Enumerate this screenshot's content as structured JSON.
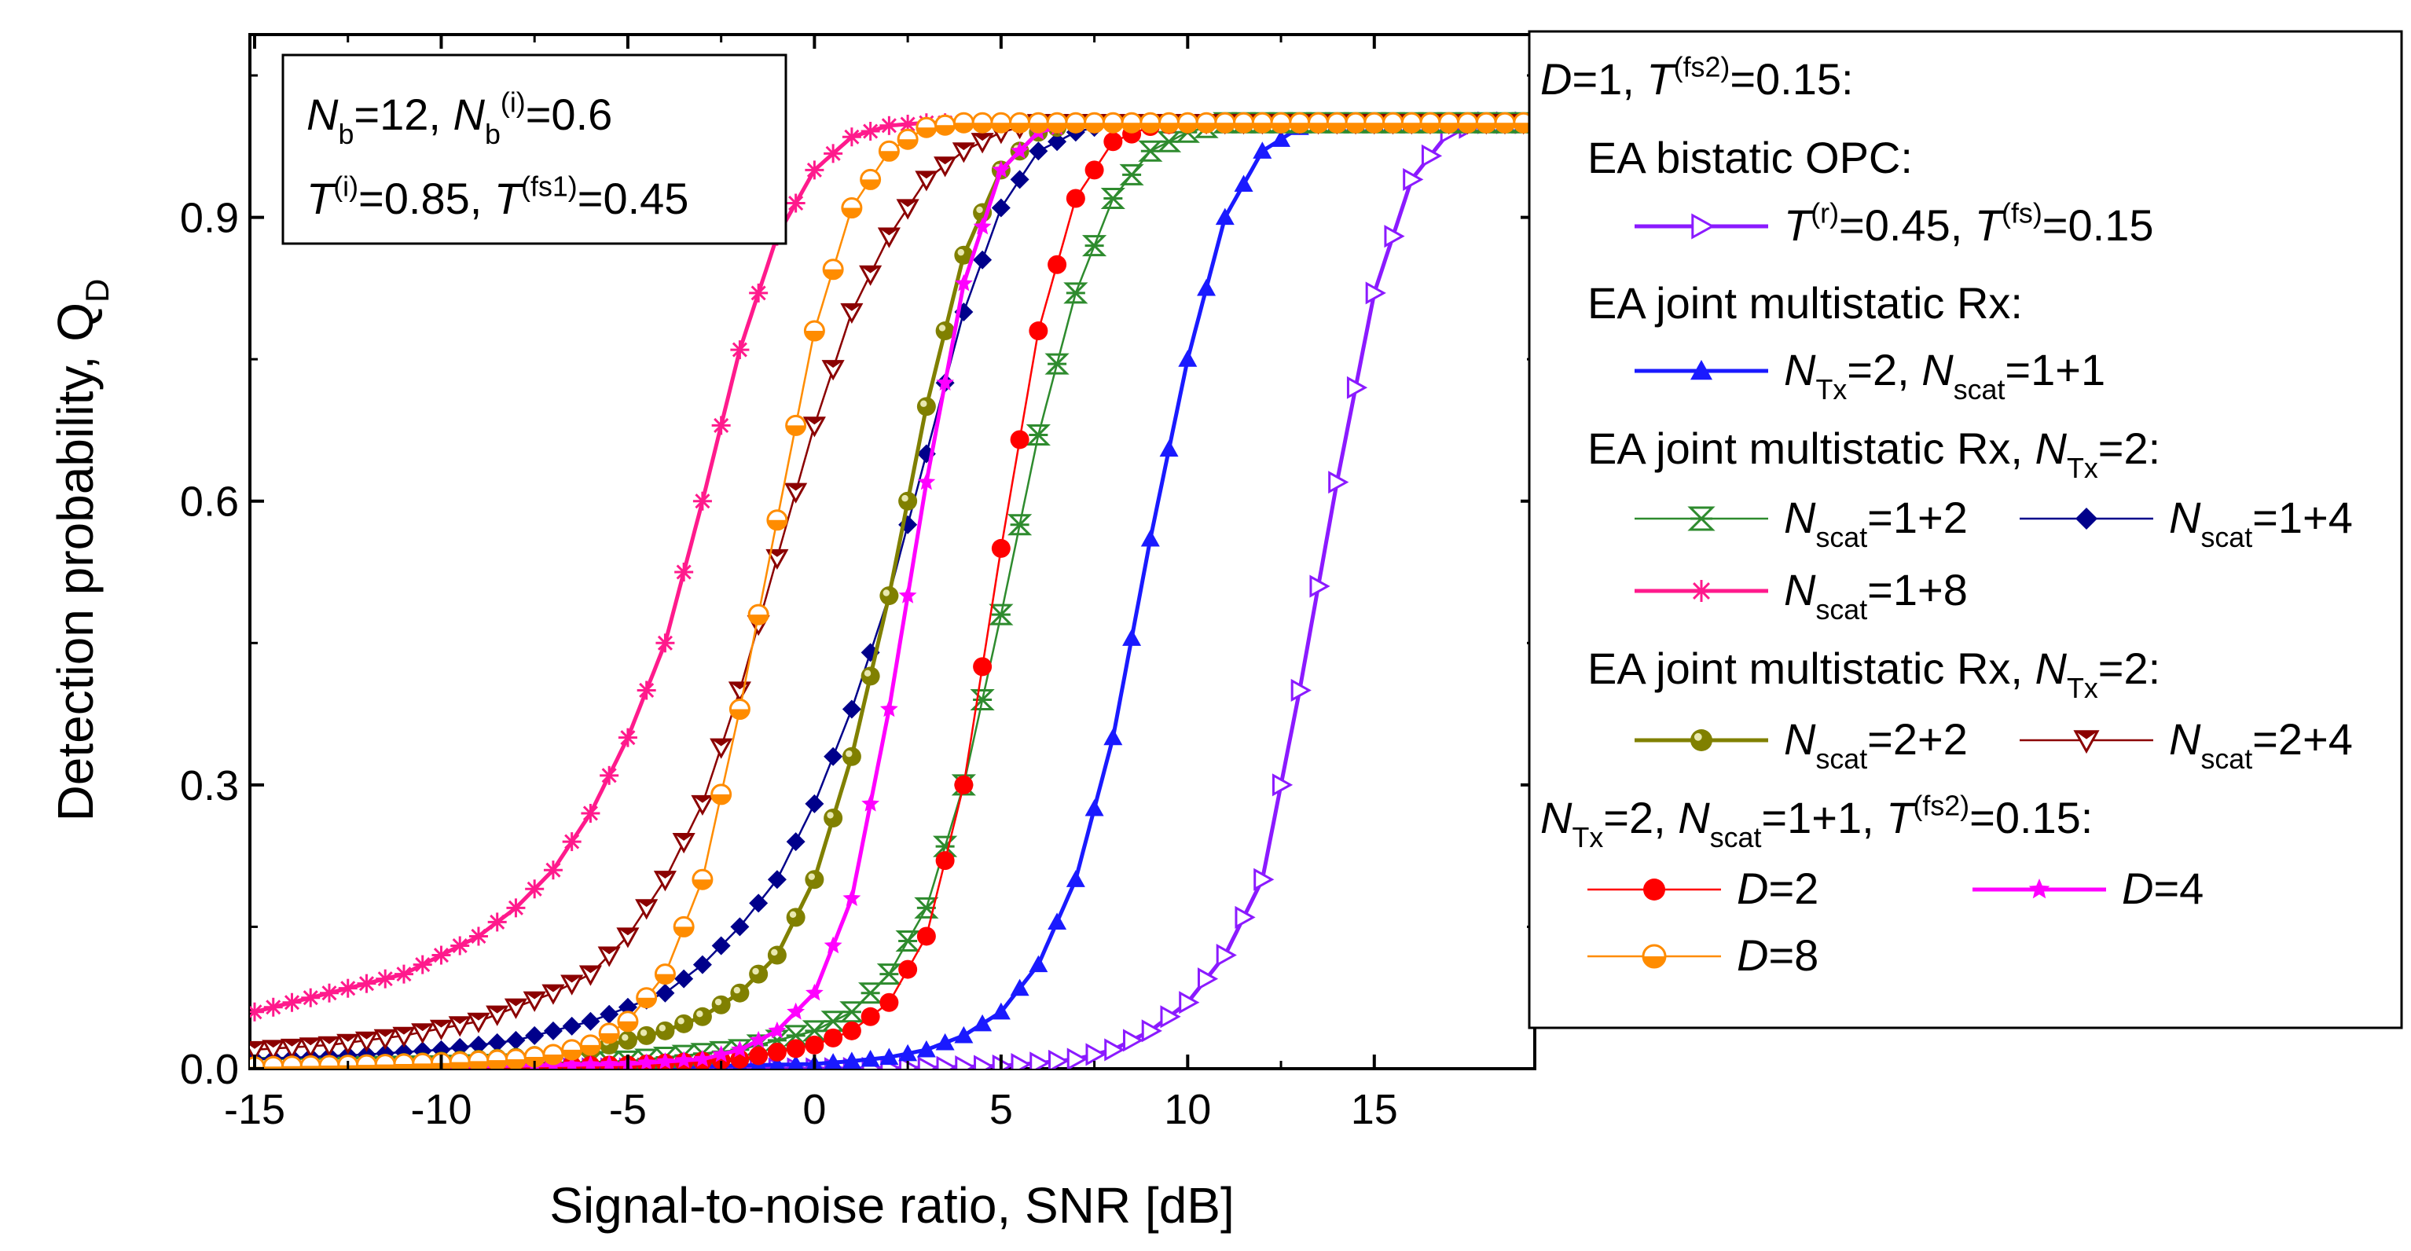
{
  "chart_data": {
    "type": "line",
    "title": "",
    "xlabel": "Signal-to-noise ratio, SNR [dB]",
    "ylabel": {
      "main": "Detection probability, Q",
      "sub": "D"
    },
    "xlim": [
      -15,
      19.3
    ],
    "ylim": [
      0,
      1.05
    ],
    "xticks": [
      -15,
      -10,
      -5,
      0,
      5,
      10,
      15
    ],
    "yticks": [
      0,
      0.3,
      0.6,
      0.9
    ],
    "ytick_labels": [
      "0.0",
      "0.3",
      "0.6",
      "0.9"
    ],
    "grid": false,
    "legend_position": "right, outside plot",
    "params_box": {
      "line1": [
        {
          "t": "N",
          "i": true
        },
        {
          "t": "b",
          "sub": true
        },
        {
          "t": "=12, "
        },
        {
          "t": "N",
          "i": true
        },
        {
          "t": "b",
          "sub": true
        },
        {
          "t": "(i)",
          "sup": true
        },
        {
          "t": "=0.6"
        }
      ],
      "line2": [
        {
          "t": "T",
          "i": true
        },
        {
          "t": "(i)",
          "sup": true
        },
        {
          "t": "=0.85, "
        },
        {
          "t": "T",
          "i": true
        },
        {
          "t": "(fs1)",
          "sup": true
        },
        {
          "t": "=0.45"
        }
      ]
    },
    "legend_headers": {
      "h1": [
        {
          "t": "D",
          "i": true
        },
        {
          "t": "=1, "
        },
        {
          "t": "T",
          "i": true
        },
        {
          "t": "(fs2)",
          "sup": true
        },
        {
          "t": "=0.15:"
        }
      ],
      "h2": [
        {
          "t": "EA bistatic OPC:"
        }
      ],
      "h3": [
        {
          "t": "EA joint multistatic Rx:"
        }
      ],
      "h4": [
        {
          "t": "EA joint multistatic Rx, "
        },
        {
          "t": "N",
          "i": true
        },
        {
          "t": "Tx",
          "sub": true
        },
        {
          "t": "=2:"
        }
      ],
      "h5": [
        {
          "t": "EA joint multistatic Rx, "
        },
        {
          "t": "N",
          "i": true
        },
        {
          "t": "Tx",
          "sub": true
        },
        {
          "t": "=2:"
        }
      ],
      "h6": [
        {
          "t": "N",
          "i": true
        },
        {
          "t": "Tx",
          "sub": true
        },
        {
          "t": "=2, "
        },
        {
          "t": "N",
          "i": true
        },
        {
          "t": "scat",
          "sub": true
        },
        {
          "t": "=1+1, "
        },
        {
          "t": "T",
          "i": true
        },
        {
          "t": "(fs2)",
          "sup": true
        },
        {
          "t": "=0.15:"
        }
      ]
    },
    "series": [
      {
        "id": "bistatic",
        "legend": [
          {
            "t": "T",
            "i": true
          },
          {
            "t": "(r)",
            "sup": true
          },
          {
            "t": "=0.45, "
          },
          {
            "t": "T",
            "i": true
          },
          {
            "t": "(fs)",
            "sup": true
          },
          {
            "t": "=0.15"
          }
        ],
        "color": "#8B1AFF",
        "marker": "triangle-right-open",
        "thick": true,
        "points": [
          [
            -15,
            0
          ],
          [
            -10,
            0
          ],
          [
            -5,
            0
          ],
          [
            0,
            0
          ],
          [
            3,
            0.001
          ],
          [
            5,
            0.003
          ],
          [
            6,
            0.006
          ],
          [
            7,
            0.01
          ],
          [
            8,
            0.02
          ],
          [
            9,
            0.04
          ],
          [
            10,
            0.07
          ],
          [
            11,
            0.12
          ],
          [
            12,
            0.2
          ],
          [
            13,
            0.4
          ],
          [
            14,
            0.62
          ],
          [
            15,
            0.82
          ],
          [
            16,
            0.94
          ],
          [
            17,
            0.99
          ],
          [
            18,
            1.0
          ],
          [
            19.3,
            1.0
          ]
        ]
      },
      {
        "id": "nscat11",
        "legend": [
          {
            "t": "N",
            "i": true
          },
          {
            "t": "Tx",
            "sub": true
          },
          {
            "t": "=2, "
          },
          {
            "t": "N",
            "i": true
          },
          {
            "t": "scat",
            "sub": true
          },
          {
            "t": "=1+1"
          }
        ],
        "color": "#1A1AFF",
        "marker": "triangle-up",
        "thick": true,
        "points": [
          [
            -15,
            0
          ],
          [
            -10,
            0
          ],
          [
            -5,
            0.001
          ],
          [
            0,
            0.005
          ],
          [
            1,
            0.008
          ],
          [
            2,
            0.012
          ],
          [
            3,
            0.02
          ],
          [
            4,
            0.035
          ],
          [
            5,
            0.06
          ],
          [
            6,
            0.11
          ],
          [
            7,
            0.2
          ],
          [
            8,
            0.35
          ],
          [
            9,
            0.56
          ],
          [
            10,
            0.75
          ],
          [
            11,
            0.9
          ],
          [
            12,
            0.97
          ],
          [
            13,
            0.995
          ],
          [
            14,
            1.0
          ],
          [
            19.3,
            1.0
          ]
        ]
      },
      {
        "id": "nscat12",
        "legend": [
          {
            "t": "N",
            "i": true
          },
          {
            "t": "scat",
            "sub": true
          },
          {
            "t": "=1+2"
          }
        ],
        "color": "#2E8B2E",
        "marker": "hourglass",
        "thick": false,
        "points": [
          [
            -15,
            0.001
          ],
          [
            -10,
            0.003
          ],
          [
            -5,
            0.008
          ],
          [
            -2,
            0.02
          ],
          [
            0,
            0.04
          ],
          [
            1,
            0.06
          ],
          [
            2,
            0.1
          ],
          [
            3,
            0.17
          ],
          [
            4,
            0.3
          ],
          [
            5,
            0.48
          ],
          [
            6,
            0.67
          ],
          [
            7,
            0.82
          ],
          [
            8,
            0.92
          ],
          [
            9,
            0.97
          ],
          [
            10,
            0.99
          ],
          [
            11,
            1.0
          ],
          [
            19.3,
            1.0
          ]
        ]
      },
      {
        "id": "nscat14",
        "legend": [
          {
            "t": "N",
            "i": true
          },
          {
            "t": "scat",
            "sub": true
          },
          {
            "t": "=1+4"
          }
        ],
        "color": "#00008B",
        "marker": "diamond",
        "thick": false,
        "points": [
          [
            -15,
            0.01
          ],
          [
            -12,
            0.015
          ],
          [
            -10,
            0.02
          ],
          [
            -8,
            0.03
          ],
          [
            -6,
            0.05
          ],
          [
            -4,
            0.08
          ],
          [
            -3,
            0.11
          ],
          [
            -2,
            0.15
          ],
          [
            -1,
            0.2
          ],
          [
            0,
            0.28
          ],
          [
            1,
            0.38
          ],
          [
            2,
            0.5
          ],
          [
            3,
            0.65
          ],
          [
            4,
            0.8
          ],
          [
            5,
            0.91
          ],
          [
            6,
            0.97
          ],
          [
            7,
            0.99
          ],
          [
            8,
            1.0
          ],
          [
            19.3,
            1.0
          ]
        ]
      },
      {
        "id": "nscat18",
        "legend": [
          {
            "t": "N",
            "i": true
          },
          {
            "t": "scat",
            "sub": true
          },
          {
            "t": "=1+8"
          }
        ],
        "color": "#FF1A8C",
        "marker": "asterisk",
        "thick": true,
        "points": [
          [
            -15,
            0.06
          ],
          [
            -13,
            0.08
          ],
          [
            -11,
            0.1
          ],
          [
            -9,
            0.14
          ],
          [
            -8,
            0.17
          ],
          [
            -7,
            0.21
          ],
          [
            -6,
            0.27
          ],
          [
            -5,
            0.35
          ],
          [
            -4,
            0.45
          ],
          [
            -3,
            0.6
          ],
          [
            -2,
            0.76
          ],
          [
            -1,
            0.88
          ],
          [
            0,
            0.95
          ],
          [
            1,
            0.985
          ],
          [
            2,
            0.997
          ],
          [
            3,
            1.0
          ],
          [
            19.3,
            1.0
          ]
        ]
      },
      {
        "id": "nscat22",
        "legend": [
          {
            "t": "N",
            "i": true
          },
          {
            "t": "scat",
            "sub": true
          },
          {
            "t": "=2+2"
          }
        ],
        "color": "#808000",
        "marker": "ball",
        "thick": true,
        "points": [
          [
            -15,
            0.003
          ],
          [
            -12,
            0.005
          ],
          [
            -10,
            0.008
          ],
          [
            -8,
            0.012
          ],
          [
            -6,
            0.02
          ],
          [
            -4,
            0.04
          ],
          [
            -3,
            0.055
          ],
          [
            -2,
            0.08
          ],
          [
            -1,
            0.12
          ],
          [
            0,
            0.2
          ],
          [
            1,
            0.33
          ],
          [
            2,
            0.5
          ],
          [
            3,
            0.7
          ],
          [
            4,
            0.86
          ],
          [
            5,
            0.95
          ],
          [
            6,
            0.99
          ],
          [
            7,
            1.0
          ],
          [
            19.3,
            1.0
          ]
        ]
      },
      {
        "id": "nscat24",
        "legend": [
          {
            "t": "N",
            "i": true
          },
          {
            "t": "scat",
            "sub": true
          },
          {
            "t": "=2+4"
          }
        ],
        "color": "#8B0000",
        "marker": "triangle-down-open",
        "thick": false,
        "points": [
          [
            -15,
            0.02
          ],
          [
            -13,
            0.025
          ],
          [
            -11,
            0.035
          ],
          [
            -9,
            0.05
          ],
          [
            -7,
            0.08
          ],
          [
            -6,
            0.1
          ],
          [
            -5,
            0.14
          ],
          [
            -4,
            0.2
          ],
          [
            -3,
            0.28
          ],
          [
            -2,
            0.4
          ],
          [
            -1,
            0.54
          ],
          [
            0,
            0.68
          ],
          [
            1,
            0.8
          ],
          [
            2,
            0.88
          ],
          [
            3,
            0.94
          ],
          [
            4,
            0.97
          ],
          [
            5,
            0.99
          ],
          [
            6,
            1.0
          ],
          [
            19.3,
            1.0
          ]
        ]
      },
      {
        "id": "d2",
        "legend": [
          {
            "t": "D",
            "i": true
          },
          {
            "t": "=2"
          }
        ],
        "color": "#FF0000",
        "marker": "circle",
        "thick": false,
        "points": [
          [
            -15,
            0.001
          ],
          [
            -10,
            0.002
          ],
          [
            -5,
            0.004
          ],
          [
            -2,
            0.01
          ],
          [
            0,
            0.025
          ],
          [
            1,
            0.04
          ],
          [
            2,
            0.07
          ],
          [
            3,
            0.14
          ],
          [
            4,
            0.3
          ],
          [
            5,
            0.55
          ],
          [
            6,
            0.78
          ],
          [
            7,
            0.92
          ],
          [
            8,
            0.98
          ],
          [
            9,
            0.996
          ],
          [
            10,
            1.0
          ],
          [
            19.3,
            1.0
          ]
        ]
      },
      {
        "id": "d4",
        "legend": [
          {
            "t": "D",
            "i": true
          },
          {
            "t": "=4"
          }
        ],
        "color": "#FF00FF",
        "marker": "star",
        "thick": true,
        "points": [
          [
            -15,
            0.001
          ],
          [
            -10,
            0.002
          ],
          [
            -5,
            0.005
          ],
          [
            -3,
            0.01
          ],
          [
            -2,
            0.02
          ],
          [
            -1,
            0.04
          ],
          [
            0,
            0.08
          ],
          [
            1,
            0.18
          ],
          [
            2,
            0.38
          ],
          [
            3,
            0.62
          ],
          [
            4,
            0.83
          ],
          [
            5,
            0.95
          ],
          [
            6,
            0.99
          ],
          [
            7,
            1.0
          ],
          [
            19.3,
            1.0
          ]
        ]
      },
      {
        "id": "d8",
        "legend": [
          {
            "t": "D",
            "i": true
          },
          {
            "t": "=8"
          }
        ],
        "color": "#FF8C00",
        "marker": "half-circle",
        "thick": false,
        "points": [
          [
            -15,
            0.002
          ],
          [
            -12,
            0.004
          ],
          [
            -10,
            0.006
          ],
          [
            -8,
            0.01
          ],
          [
            -7,
            0.015
          ],
          [
            -6,
            0.025
          ],
          [
            -5,
            0.05
          ],
          [
            -4,
            0.1
          ],
          [
            -3,
            0.2
          ],
          [
            -2,
            0.38
          ],
          [
            -1,
            0.58
          ],
          [
            0,
            0.78
          ],
          [
            1,
            0.91
          ],
          [
            2,
            0.97
          ],
          [
            3,
            0.995
          ],
          [
            4,
            1.0
          ],
          [
            19.3,
            1.0
          ]
        ]
      }
    ],
    "legend_rows": [
      {
        "header": "h1"
      },
      {
        "header": "h2",
        "indent": 1
      },
      {
        "series": [
          "bistatic"
        ],
        "indent": 2
      },
      {
        "header": "h3",
        "indent": 1
      },
      {
        "series": [
          "nscat11"
        ],
        "indent": 2
      },
      {
        "header": "h4",
        "indent": 1
      },
      {
        "series": [
          "nscat12",
          "nscat14"
        ],
        "indent": 2
      },
      {
        "series": [
          "nscat18"
        ],
        "indent": 2
      },
      {
        "header": "h5",
        "indent": 1
      },
      {
        "series": [
          "nscat22",
          "nscat24"
        ],
        "indent": 2
      },
      {
        "header": "h6"
      },
      {
        "series": [
          "d2",
          "d4"
        ],
        "indent": 1
      },
      {
        "series": [
          "d8"
        ],
        "indent": 1
      }
    ]
  }
}
